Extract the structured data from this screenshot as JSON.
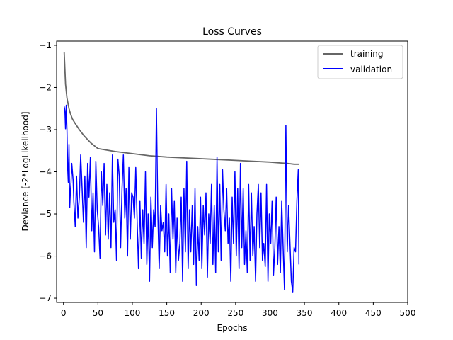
{
  "chart_data": {
    "type": "line",
    "title": "Loss Curves",
    "xlabel": "Epochs",
    "ylabel": "Deviance [-2*LogLikelihood]",
    "xlim": [
      -10,
      500
    ],
    "ylim": [
      -7.1,
      -0.9
    ],
    "xticks": [
      0,
      50,
      100,
      150,
      200,
      250,
      300,
      350,
      400,
      450,
      500
    ],
    "yticks": [
      -7,
      -6,
      -5,
      -4,
      -3,
      -2,
      -1
    ],
    "legend_position": "top-right",
    "grid": false,
    "series": [
      {
        "name": "training",
        "color": "#666666",
        "points": [
          [
            1,
            -1.17
          ],
          [
            3,
            -1.92
          ],
          [
            5,
            -2.25
          ],
          [
            8,
            -2.5
          ],
          [
            10,
            -2.62
          ],
          [
            13,
            -2.75
          ],
          [
            18,
            -2.88
          ],
          [
            23,
            -3.0
          ],
          [
            30,
            -3.15
          ],
          [
            40,
            -3.32
          ],
          [
            50,
            -3.45
          ],
          [
            75,
            -3.52
          ],
          [
            100,
            -3.57
          ],
          [
            125,
            -3.62
          ],
          [
            150,
            -3.65
          ],
          [
            175,
            -3.67
          ],
          [
            200,
            -3.69
          ],
          [
            225,
            -3.71
          ],
          [
            250,
            -3.73
          ],
          [
            275,
            -3.75
          ],
          [
            300,
            -3.77
          ],
          [
            315,
            -3.79
          ],
          [
            325,
            -3.8
          ],
          [
            335,
            -3.82
          ],
          [
            342,
            -3.82
          ]
        ]
      },
      {
        "name": "validation",
        "color": "#0000ff",
        "points": [
          [
            1,
            -2.45
          ],
          [
            2,
            -2.55
          ],
          [
            3,
            -2.98
          ],
          [
            4,
            -2.42
          ],
          [
            5,
            -3.0
          ],
          [
            6,
            -3.9
          ],
          [
            7,
            -4.25
          ],
          [
            8,
            -3.35
          ],
          [
            9,
            -4.85
          ],
          [
            10,
            -4.45
          ],
          [
            11,
            -4.25
          ],
          [
            12,
            -3.8
          ],
          [
            14,
            -4.2
          ],
          [
            15,
            -4.7
          ],
          [
            17,
            -5.3
          ],
          [
            19,
            -4.1
          ],
          [
            21,
            -5.1
          ],
          [
            23,
            -4.6
          ],
          [
            25,
            -3.6
          ],
          [
            27,
            -4.4
          ],
          [
            29,
            -5.2
          ],
          [
            31,
            -4.1
          ],
          [
            33,
            -5.8
          ],
          [
            35,
            -3.8
          ],
          [
            37,
            -4.6
          ],
          [
            39,
            -3.65
          ],
          [
            41,
            -5.4
          ],
          [
            43,
            -4.5
          ],
          [
            45,
            -5.9
          ],
          [
            47,
            -3.75
          ],
          [
            49,
            -4.9
          ],
          [
            51,
            -5.3
          ],
          [
            53,
            -6.05
          ],
          [
            55,
            -4.0
          ],
          [
            57,
            -4.8
          ],
          [
            59,
            -3.8
          ],
          [
            61,
            -5.5
          ],
          [
            63,
            -4.3
          ],
          [
            65,
            -5.6
          ],
          [
            67,
            -4.5
          ],
          [
            69,
            -5.8
          ],
          [
            71,
            -3.6
          ],
          [
            73,
            -5.2
          ],
          [
            75,
            -4.9
          ],
          [
            77,
            -6.1
          ],
          [
            79,
            -3.7
          ],
          [
            81,
            -4.1
          ],
          [
            83,
            -5.8
          ],
          [
            85,
            -4.4
          ],
          [
            87,
            -3.6
          ],
          [
            89,
            -5.1
          ],
          [
            91,
            -4.4
          ],
          [
            93,
            -6.0
          ],
          [
            95,
            -3.9
          ],
          [
            97,
            -5.6
          ],
          [
            99,
            -4.5
          ],
          [
            101,
            -4.6
          ],
          [
            103,
            -5.1
          ],
          [
            105,
            -3.9
          ],
          [
            107,
            -5.2
          ],
          [
            109,
            -6.3
          ],
          [
            111,
            -4.7
          ],
          [
            113,
            -6.05
          ],
          [
            115,
            -4.9
          ],
          [
            117,
            -5.7
          ],
          [
            119,
            -4.0
          ],
          [
            121,
            -6.2
          ],
          [
            123,
            -5.0
          ],
          [
            125,
            -6.6
          ],
          [
            127,
            -4.6
          ],
          [
            129,
            -5.8
          ],
          [
            131,
            -4.9
          ],
          [
            133,
            -5.3
          ],
          [
            135,
            -2.5
          ],
          [
            137,
            -5.0
          ],
          [
            139,
            -6.3
          ],
          [
            141,
            -4.8
          ],
          [
            143,
            -5.4
          ],
          [
            145,
            -5.2
          ],
          [
            147,
            -5.9
          ],
          [
            149,
            -4.3
          ],
          [
            151,
            -6.0
          ],
          [
            153,
            -5.0
          ],
          [
            155,
            -6.4
          ],
          [
            157,
            -4.4
          ],
          [
            159,
            -5.6
          ],
          [
            161,
            -4.7
          ],
          [
            163,
            -6.4
          ],
          [
            165,
            -5.1
          ],
          [
            167,
            -6.1
          ],
          [
            169,
            -5.7
          ],
          [
            171,
            -4.6
          ],
          [
            173,
            -6.6
          ],
          [
            175,
            -4.4
          ],
          [
            177,
            -5.9
          ],
          [
            179,
            -3.75
          ],
          [
            181,
            -6.3
          ],
          [
            183,
            -4.9
          ],
          [
            185,
            -5.9
          ],
          [
            187,
            -4.8
          ],
          [
            189,
            -6.2
          ],
          [
            191,
            -4.4
          ],
          [
            193,
            -6.7
          ],
          [
            195,
            -5.3
          ],
          [
            197,
            -6.1
          ],
          [
            199,
            -4.6
          ],
          [
            201,
            -6.3
          ],
          [
            203,
            -4.8
          ],
          [
            205,
            -5.5
          ],
          [
            207,
            -4.5
          ],
          [
            209,
            -6.5
          ],
          [
            211,
            -5.0
          ],
          [
            213,
            -5.7
          ],
          [
            215,
            -4.3
          ],
          [
            217,
            -6.2
          ],
          [
            219,
            -4.8
          ],
          [
            221,
            -6.4
          ],
          [
            223,
            -3.65
          ],
          [
            225,
            -5.9
          ],
          [
            227,
            -4.3
          ],
          [
            229,
            -6.1
          ],
          [
            231,
            -3.95
          ],
          [
            233,
            -4.9
          ],
          [
            235,
            -5.4
          ],
          [
            237,
            -4.4
          ],
          [
            239,
            -5.7
          ],
          [
            241,
            -5.1
          ],
          [
            243,
            -6.6
          ],
          [
            245,
            -4.6
          ],
          [
            247,
            -5.7
          ],
          [
            249,
            -4.0
          ],
          [
            251,
            -6.0
          ],
          [
            253,
            -4.4
          ],
          [
            255,
            -6.3
          ],
          [
            257,
            -3.8
          ],
          [
            259,
            -5.8
          ],
          [
            261,
            -4.4
          ],
          [
            263,
            -6.2
          ],
          [
            265,
            -5.4
          ],
          [
            267,
            -6.4
          ],
          [
            269,
            -4.3
          ],
          [
            271,
            -6.1
          ],
          [
            273,
            -4.5
          ],
          [
            275,
            -6.0
          ],
          [
            277,
            -5.3
          ],
          [
            279,
            -6.6
          ],
          [
            281,
            -5.0
          ],
          [
            283,
            -4.3
          ],
          [
            285,
            -5.8
          ],
          [
            287,
            -4.5
          ],
          [
            289,
            -6.1
          ],
          [
            291,
            -5.7
          ],
          [
            293,
            -6.25
          ],
          [
            295,
            -4.3
          ],
          [
            297,
            -6.6
          ],
          [
            299,
            -5.0
          ],
          [
            301,
            -5.7
          ],
          [
            303,
            -4.7
          ],
          [
            305,
            -6.45
          ],
          [
            307,
            -5.8
          ],
          [
            309,
            -4.6
          ],
          [
            311,
            -6.2
          ],
          [
            313,
            -5.3
          ],
          [
            315,
            -6.4
          ],
          [
            317,
            -4.7
          ],
          [
            319,
            -5.8
          ],
          [
            321,
            -6.8
          ],
          [
            323,
            -2.9
          ],
          [
            325,
            -5.9
          ],
          [
            327,
            -4.8
          ],
          [
            329,
            -5.7
          ],
          [
            331,
            -6.6
          ],
          [
            333,
            -6.85
          ],
          [
            335,
            -5.8
          ],
          [
            337,
            -5.9
          ],
          [
            339,
            -4.7
          ],
          [
            341,
            -3.95
          ],
          [
            342,
            -6.2
          ]
        ]
      }
    ]
  }
}
